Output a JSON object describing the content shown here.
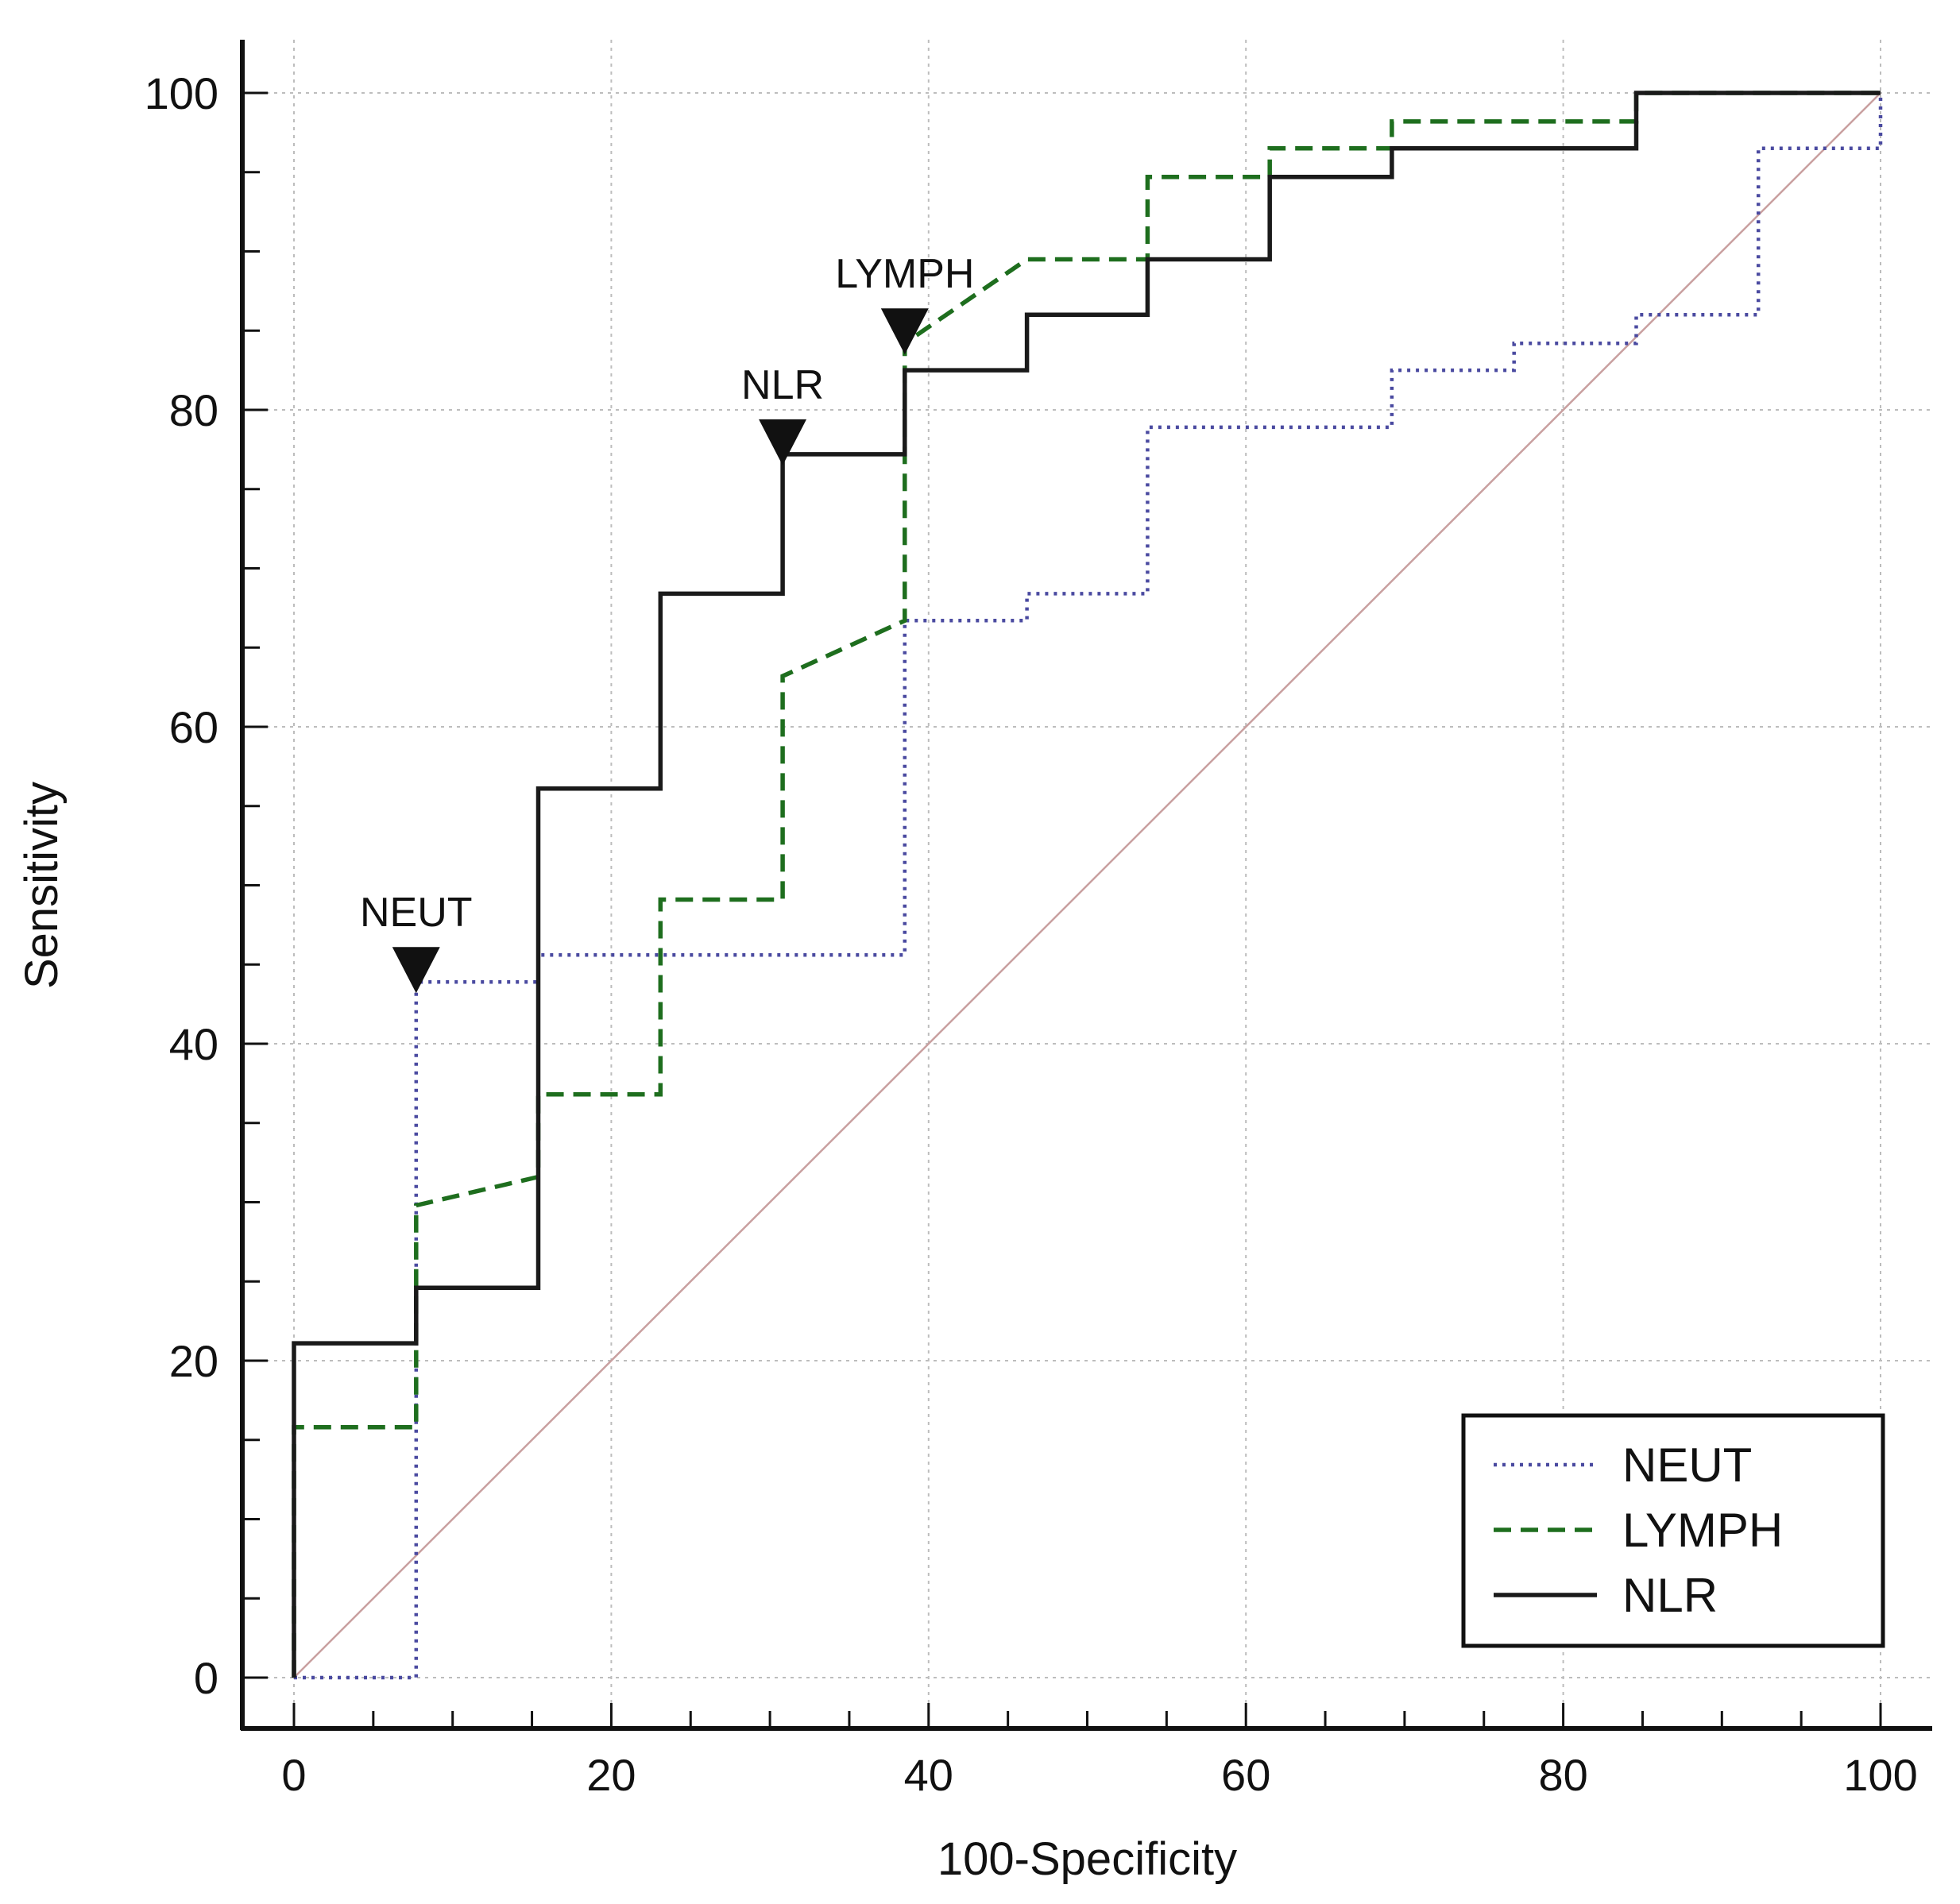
{
  "chart_data": {
    "type": "line",
    "title": "",
    "xlabel": "100-Specificity",
    "ylabel": "Sensitivity",
    "xlim": [
      0,
      100
    ],
    "ylim": [
      0,
      100
    ],
    "xticks": [
      0,
      20,
      40,
      60,
      80,
      100
    ],
    "yticks": [
      0,
      20,
      40,
      60,
      80,
      100
    ],
    "grid": true,
    "legend_position": "bottom-right",
    "reference_line": {
      "name": "reference-diagonal",
      "x": [
        0,
        100
      ],
      "y": [
        0,
        100
      ],
      "color": "#c9a0a0"
    },
    "series": [
      {
        "name": "NEUT",
        "style": "dotted",
        "color": "#4a4aa0",
        "x": [
          0,
          7.7,
          7.7,
          15.4,
          15.4,
          38.5,
          38.5,
          46.2,
          46.2,
          53.8,
          53.8,
          69.2,
          69.2,
          76.9,
          76.9,
          84.6,
          84.6,
          92.3,
          92.3,
          100,
          100
        ],
        "y": [
          0,
          0,
          43.9,
          43.9,
          45.6,
          45.6,
          66.7,
          66.7,
          68.4,
          68.4,
          78.9,
          78.9,
          82.5,
          82.5,
          84.2,
          84.2,
          86.0,
          86.0,
          96.5,
          96.5,
          100
        ],
        "marker": {
          "x": 7.7,
          "y": 43.9,
          "label": "NEUT"
        }
      },
      {
        "name": "LYMPH",
        "style": "dashed",
        "color": "#1e6e1e",
        "x": [
          0,
          0,
          7.7,
          7.7,
          15.4,
          15.4,
          23.1,
          23.1,
          30.8,
          30.8,
          38.5,
          38.5,
          46.2,
          53.8,
          53.8,
          61.5,
          61.5,
          69.2,
          69.2,
          84.6,
          84.6,
          100
        ],
        "y": [
          0,
          15.8,
          15.8,
          29.8,
          31.6,
          36.8,
          36.8,
          49.1,
          49.1,
          63.2,
          66.7,
          84.2,
          89.5,
          89.5,
          94.7,
          94.7,
          96.5,
          96.5,
          98.2,
          98.2,
          100,
          100
        ],
        "marker": {
          "x": 38.5,
          "y": 84.2,
          "label": "LYMPH"
        }
      },
      {
        "name": "NLR",
        "style": "solid",
        "color": "#1a1a1a",
        "x": [
          0,
          0,
          7.7,
          7.7,
          15.4,
          15.4,
          23.1,
          23.1,
          30.8,
          30.8,
          38.5,
          38.5,
          46.2,
          46.2,
          53.8,
          53.8,
          61.5,
          61.5,
          69.2,
          69.2,
          84.6,
          84.6,
          100
        ],
        "y": [
          0,
          21.1,
          21.1,
          24.6,
          24.6,
          56.1,
          56.1,
          68.4,
          68.4,
          77.2,
          77.2,
          82.5,
          82.5,
          86.0,
          86.0,
          89.5,
          89.5,
          94.7,
          94.7,
          96.5,
          96.5,
          100,
          100
        ],
        "marker": {
          "x": 30.8,
          "y": 77.2,
          "label": "NLR"
        }
      }
    ]
  }
}
